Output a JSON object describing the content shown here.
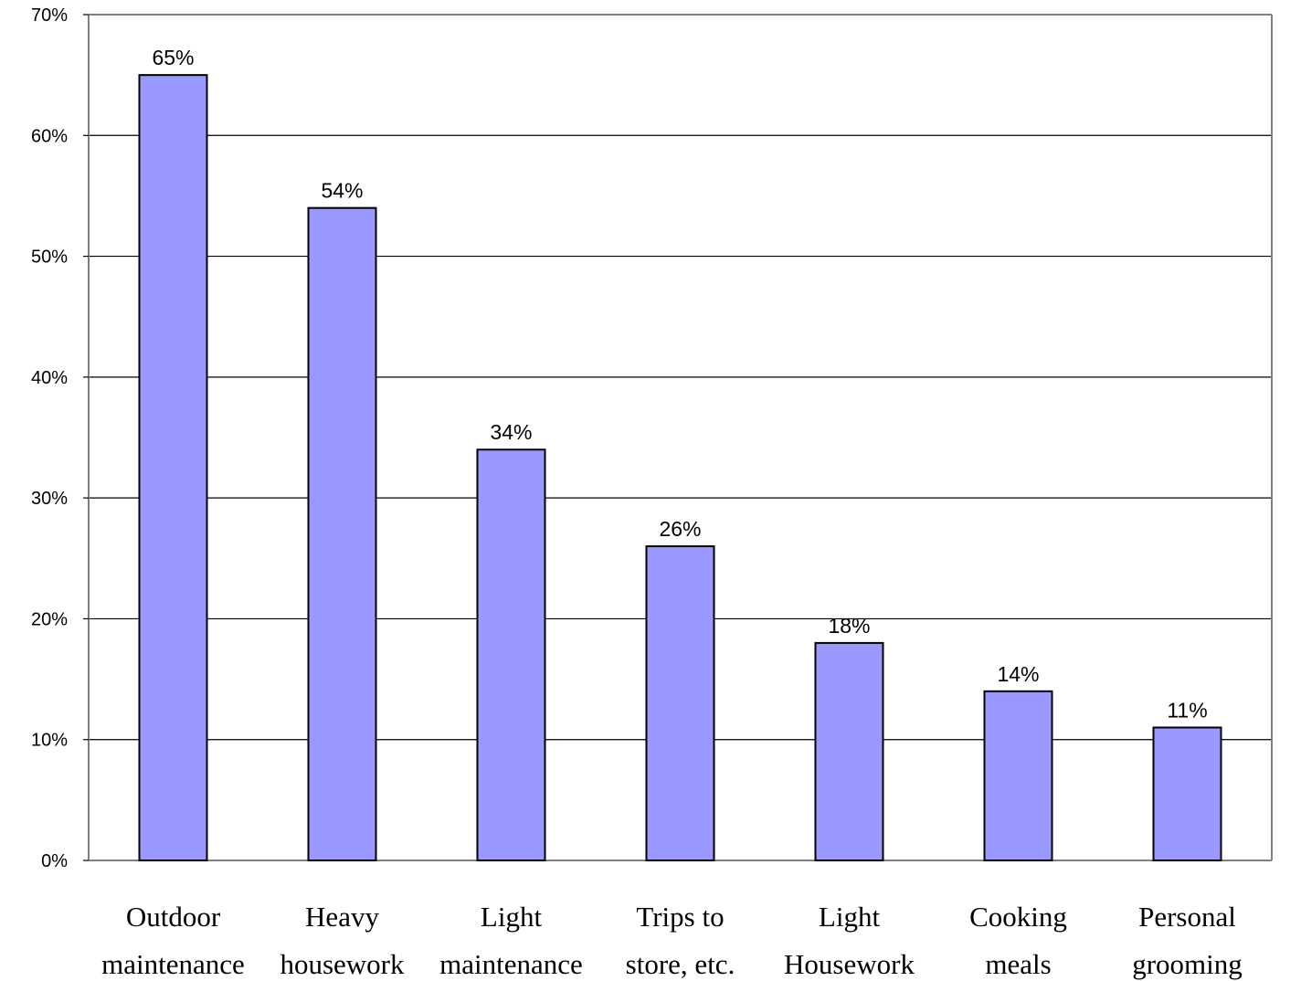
{
  "chart_data": {
    "type": "bar",
    "title": "",
    "xlabel": "",
    "ylabel": "",
    "categories": [
      [
        "Outdoor",
        "maintenance"
      ],
      [
        "Heavy",
        "housework"
      ],
      [
        "Light",
        "maintenance"
      ],
      [
        "Trips to",
        "store, etc."
      ],
      [
        "Light",
        "Housework"
      ],
      [
        "Cooking",
        "meals"
      ],
      [
        "Personal",
        "grooming"
      ]
    ],
    "values": [
      65,
      54,
      34,
      26,
      18,
      14,
      11
    ],
    "data_labels": [
      "65%",
      "54%",
      "34%",
      "26%",
      "18%",
      "14%",
      "11%"
    ],
    "ylim": [
      0,
      70
    ],
    "y_ticks": [
      0,
      10,
      20,
      30,
      40,
      50,
      60,
      70
    ],
    "y_tick_labels": [
      "0%",
      "10%",
      "20%",
      "30%",
      "40%",
      "50%",
      "60%",
      "70%"
    ],
    "grid": true,
    "legend": "none",
    "colors": {
      "bar_fill": "#9999ff",
      "bar_stroke": "#000000",
      "gridline": "#000000",
      "frame": "#808080"
    }
  }
}
